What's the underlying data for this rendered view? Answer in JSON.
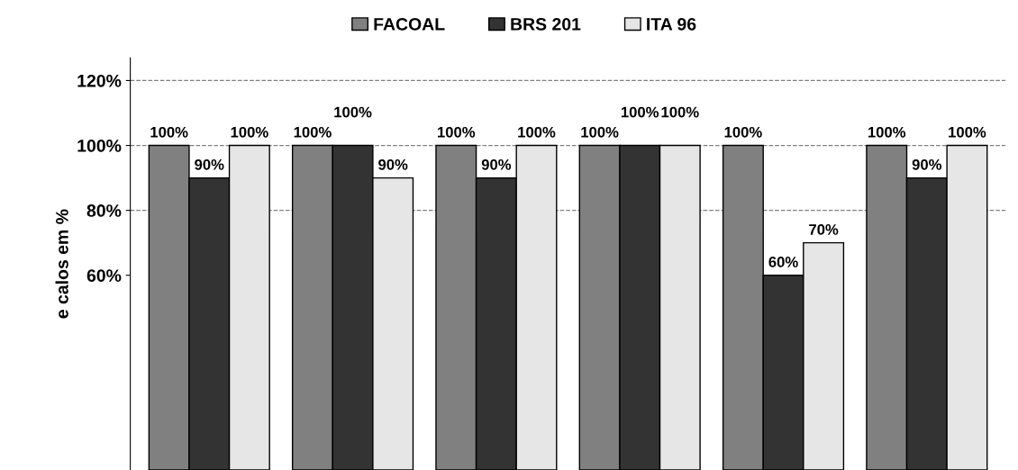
{
  "chart_data": {
    "type": "bar",
    "ylabel": "e calos em %",
    "categories": [
      null,
      null,
      null,
      null,
      null,
      null
    ],
    "series": [
      {
        "name": "FACOAL",
        "color": "#808080",
        "values": [
          100,
          100,
          100,
          100,
          100,
          100
        ],
        "value_labels": [
          "100%",
          "100%",
          "100%",
          "100%",
          "100%",
          "100%"
        ]
      },
      {
        "name": "BRS 201",
        "color": "#333333",
        "values": [
          90,
          100,
          90,
          100,
          60,
          90
        ],
        "value_labels": [
          "90%",
          "100%",
          "90%",
          "100%",
          "60%",
          "90%"
        ]
      },
      {
        "name": "ITA 96",
        "color": "#e6e6e6",
        "values": [
          100,
          90,
          100,
          100,
          70,
          100
        ],
        "value_labels": [
          "100%",
          "90%",
          "100%",
          "100%",
          "70%",
          "100%"
        ]
      }
    ],
    "ylim": [
      0,
      127
    ],
    "yticks": [
      {
        "value": 60,
        "label": "60%"
      },
      {
        "value": 80,
        "label": "80%"
      },
      {
        "value": 100,
        "label": "100%"
      },
      {
        "value": 120,
        "label": "120%"
      }
    ],
    "ref_lines": [
      {
        "axis": "y",
        "value": 80,
        "line_style": "dashed",
        "color": "#808080"
      },
      {
        "axis": "y",
        "value": 100,
        "line_style": "dashed",
        "color": "#808080"
      },
      {
        "axis": "y",
        "value": 120,
        "line_style": "dashed",
        "color": "#808080"
      }
    ],
    "legend": "top",
    "grid": false
  }
}
